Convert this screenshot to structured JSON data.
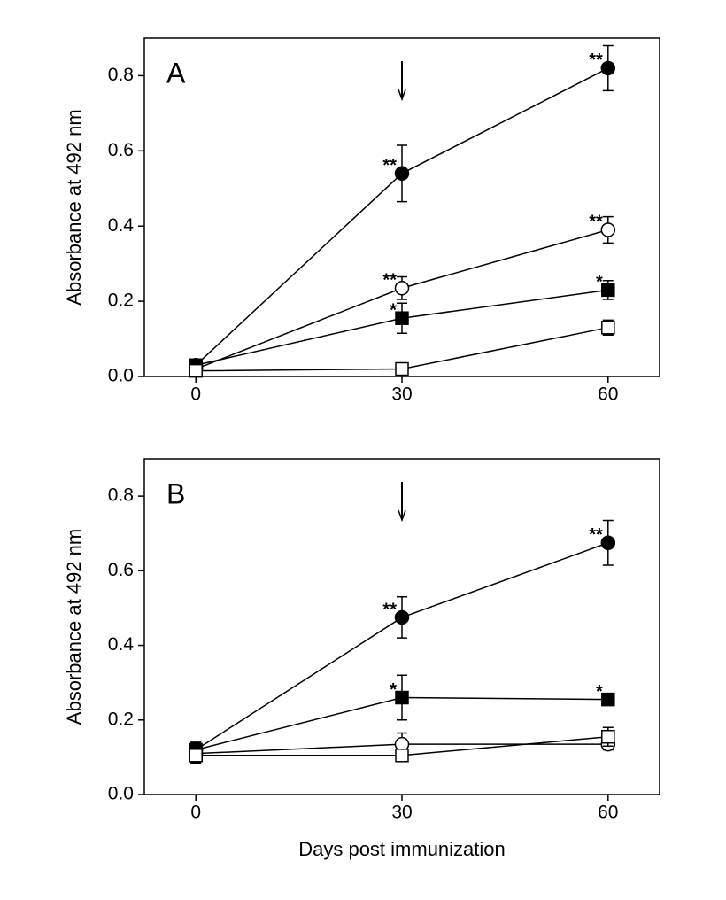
{
  "chart_data": [
    {
      "type": "line",
      "panel": "A",
      "ylabel": "Absorbance at 492 nm",
      "x": [
        0,
        30,
        60
      ],
      "xlim": [
        -7.5,
        67.5
      ],
      "xticks": [
        0,
        30,
        60
      ],
      "ylim": [
        0,
        0.9
      ],
      "yticks": [
        {
          "value": 0,
          "label": "0.0"
        },
        0.2,
        0.4,
        0.6,
        0.8
      ],
      "arrow_at": 30,
      "series": [
        {
          "marker": "circle",
          "filled": true,
          "color": "#000000",
          "values": [
            0.03,
            0.54,
            0.82
          ],
          "errors": [
            0.01,
            0.075,
            0.06
          ],
          "labels": [
            null,
            "**",
            "**"
          ]
        },
        {
          "marker": "circle",
          "filled": false,
          "color": "#000000",
          "values": [
            0.02,
            0.235,
            0.39
          ],
          "errors": [
            0.01,
            0.03,
            0.035
          ],
          "labels": [
            null,
            "**",
            "**"
          ]
        },
        {
          "marker": "square",
          "filled": true,
          "color": "#000000",
          "values": [
            0.03,
            0.155,
            0.23
          ],
          "errors": [
            0.01,
            0.04,
            0.025
          ],
          "labels": [
            null,
            "*",
            "*"
          ]
        },
        {
          "marker": "square",
          "filled": false,
          "color": "#000000",
          "values": [
            0.015,
            0.02,
            0.13
          ],
          "errors": [
            0.01,
            0.005,
            0.02
          ],
          "labels": [
            null,
            null,
            null
          ]
        }
      ]
    },
    {
      "type": "line",
      "panel": "B",
      "ylabel": "Absorbance at 492 nm",
      "xlabel": "Days post immunization",
      "x": [
        0,
        30,
        60
      ],
      "xlim": [
        -7.5,
        67.5
      ],
      "xticks": [
        0,
        30,
        60
      ],
      "ylim": [
        0,
        0.9
      ],
      "yticks": [
        {
          "value": 0,
          "label": "0.0"
        },
        0.2,
        0.4,
        0.6,
        0.8
      ],
      "arrow_at": 30,
      "series": [
        {
          "marker": "circle",
          "filled": true,
          "color": "#000000",
          "values": [
            0.12,
            0.475,
            0.675
          ],
          "errors": [
            0.02,
            0.055,
            0.06
          ],
          "labels": [
            null,
            "**",
            "**"
          ]
        },
        {
          "marker": "square",
          "filled": true,
          "color": "#000000",
          "values": [
            0.12,
            0.26,
            0.255
          ],
          "errors": [
            0.02,
            0.06,
            0.015
          ],
          "labels": [
            null,
            "*",
            "*"
          ]
        },
        {
          "marker": "circle",
          "filled": false,
          "color": "#000000",
          "values": [
            0.11,
            0.135,
            0.135
          ],
          "errors": [
            0.02,
            0.03,
            0.015
          ],
          "labels": [
            null,
            null,
            null
          ]
        },
        {
          "marker": "square",
          "filled": false,
          "color": "#000000",
          "values": [
            0.105,
            0.105,
            0.155
          ],
          "errors": [
            0.02,
            0.015,
            0.025
          ],
          "labels": [
            null,
            null,
            null
          ]
        }
      ]
    }
  ]
}
